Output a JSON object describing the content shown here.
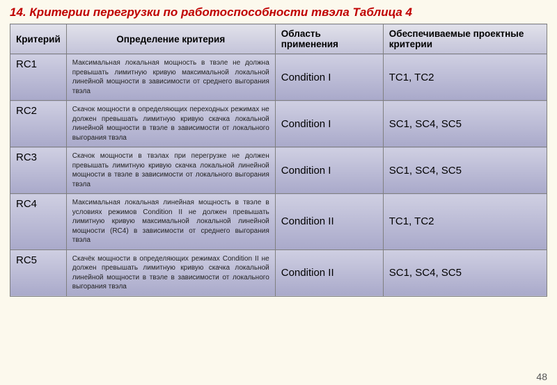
{
  "title": "14. Критерии перегрузки по работоспособности твэла  Таблица 4",
  "page_number": "48",
  "table": {
    "headers": {
      "criterion": "Критерий",
      "definition": "Определение критерия",
      "application": "Область применения",
      "project": "Обеспечиваемые проектные критерии"
    },
    "rows": [
      {
        "rc": "RC1",
        "def": "Максимальная локальная мощность в твэле не должна превышать лимитную кривую максимальной локальной линейной мощности в зависимости от среднего выгорания твэла",
        "cond": "Condition I",
        "crit": "TC1,  TC2"
      },
      {
        "rc": "RC2",
        "def": "Скачок  мощности в определяющих переходных режимах не должен превышать лимитную кривую скачка локальной линейной мощности в твэле в зависимости от локального выгорания твэла",
        "cond": "Condition I",
        "crit": "SC1,  SC4,  SC5"
      },
      {
        "rc": "RC3",
        "def": "Скачок  мощности в твэлах при  перегрузке не должен превышать лимитную кривую скачка локальной линейной мощности в твэле в зависимости от локального выгорания твэла",
        "cond": "Condition I",
        "crit": "SC1,  SC4,  SC5"
      },
      {
        "rc": "RC4",
        "def": "Максимальная локальная линейная мощность в твэле в условиях режимов Condition II не должен превышать лимитную кривую максимальной локальной линейной мощности (RC4)  в зависимости от среднего выгорания твэла",
        "cond": "Condition II",
        "crit": "TC1,  TC2"
      },
      {
        "rc": "RC5",
        "def": "Скачёк  мощности в определяющих режимах Condition II\nне должен превышать лимитную кривую скачка локальной линейной мощности в твэле в зависимости от локального выгорания твэла",
        "cond": "Condition II",
        "crit": "SC1,  SC4,  SC5"
      }
    ]
  },
  "styling": {
    "page_bg": "#fcf9ed",
    "title_color": "#c00000",
    "title_fontsize": 17,
    "header_bg_top": "#e1e1ea",
    "header_bg_bottom": "#c3c3d9",
    "cell_bg_top": "#cfcfe2",
    "cell_bg_bottom": "#a9a9ca",
    "border_color": "#7f7f7f",
    "body_font": "Arial",
    "header_fontsize": 13.5,
    "rc_fontsize": 15,
    "def_fontsize": 10,
    "cond_fontsize": 15,
    "crit_fontsize": 15
  }
}
